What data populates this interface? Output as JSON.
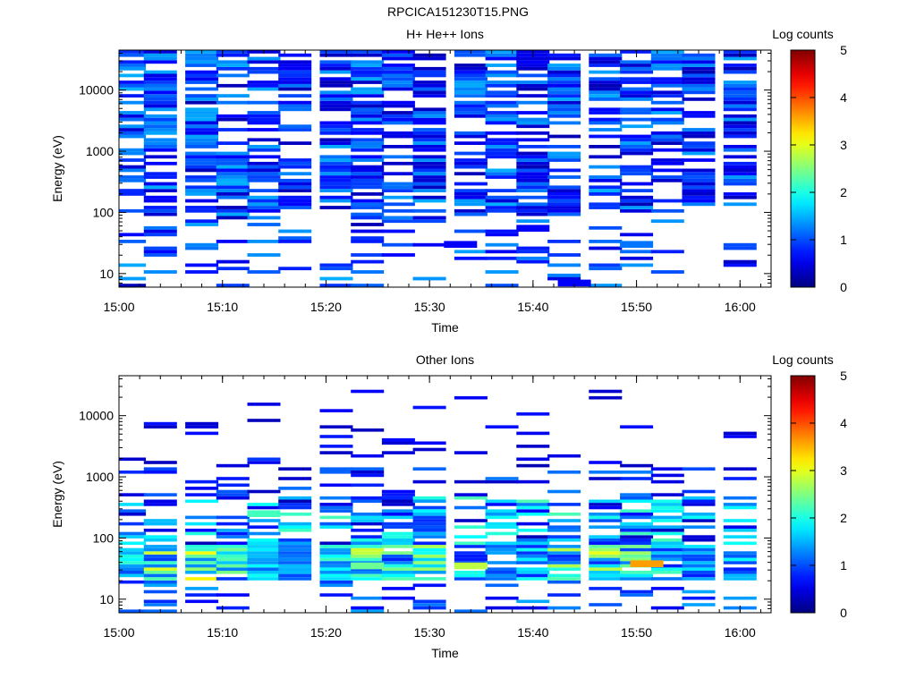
{
  "figure_title": "RPCICA151230T15.PNG",
  "chart_data": [
    {
      "type": "heatmap",
      "title": "H+ He++ Ions",
      "xlabel": "Time",
      "ylabel": "Energy (eV)",
      "x_scale": "time",
      "y_scale": "log",
      "xlim": [
        "15:00",
        "16:03"
      ],
      "ylim": [
        6,
        45000
      ],
      "x_tick_labels": [
        "15:00",
        "15:10",
        "15:20",
        "15:30",
        "15:40",
        "15:50",
        "16:00"
      ],
      "y_tick_labels": [
        "10",
        "100",
        "1000",
        "10000"
      ],
      "colorbar": {
        "label": "Log counts",
        "range": [
          0,
          5
        ],
        "tick_labels": [
          "0",
          "1",
          "2",
          "3",
          "4",
          "5"
        ]
      },
      "time_columns": [
        "15:01",
        "15:04",
        "15:08",
        "15:11",
        "15:14",
        "15:17",
        "15:21",
        "15:24",
        "15:27",
        "15:30",
        "15:34",
        "15:37",
        "15:40",
        "15:43",
        "15:47",
        "15:50",
        "15:53",
        "15:56",
        "16:00"
      ],
      "energy_range_eV": [
        6,
        45000
      ],
      "dominant_log_counts": [
        0,
        1
      ],
      "cells": [
        {
          "time": "15:44",
          "energy_eV": 7,
          "log_counts": 0.6
        },
        {
          "time": "15:50",
          "energy_eV": 30,
          "log_counts": 1.2
        },
        {
          "time": "15:33",
          "energy_eV": 30,
          "log_counts": 0.6
        },
        {
          "time": "15:40",
          "energy_eV": 55,
          "log_counts": 0.6
        }
      ]
    },
    {
      "type": "heatmap",
      "title": "Other Ions",
      "xlabel": "Time",
      "ylabel": "Energy (eV)",
      "x_scale": "time",
      "y_scale": "log",
      "xlim": [
        "15:00",
        "16:03"
      ],
      "ylim": [
        6,
        45000
      ],
      "x_tick_labels": [
        "15:00",
        "15:10",
        "15:20",
        "15:30",
        "15:40",
        "15:50",
        "16:00"
      ],
      "y_tick_labels": [
        "10",
        "100",
        "1000",
        "10000"
      ],
      "colorbar": {
        "label": "Log counts",
        "range": [
          0,
          5
        ],
        "tick_labels": [
          "0",
          "1",
          "2",
          "3",
          "4",
          "5"
        ]
      },
      "time_columns": [
        "15:01",
        "15:04",
        "15:08",
        "15:11",
        "15:14",
        "15:17",
        "15:21",
        "15:24",
        "15:27",
        "15:30",
        "15:34",
        "15:37",
        "15:40",
        "15:43",
        "15:47",
        "15:50",
        "15:53",
        "15:56",
        "16:00"
      ],
      "energy_range_eV": [
        6,
        30000
      ],
      "dominant_log_counts": [
        0,
        2
      ],
      "cells": [
        {
          "time": "15:51",
          "energy_eV": 38,
          "log_counts": 3.6
        },
        {
          "time": "15:34",
          "energy_eV": 35,
          "log_counts": 2.8
        },
        {
          "time": "15:14",
          "energy_eV": 250,
          "log_counts": 2.2
        },
        {
          "time": "15:24",
          "energy_eV": 35,
          "log_counts": 2.4
        }
      ]
    }
  ]
}
